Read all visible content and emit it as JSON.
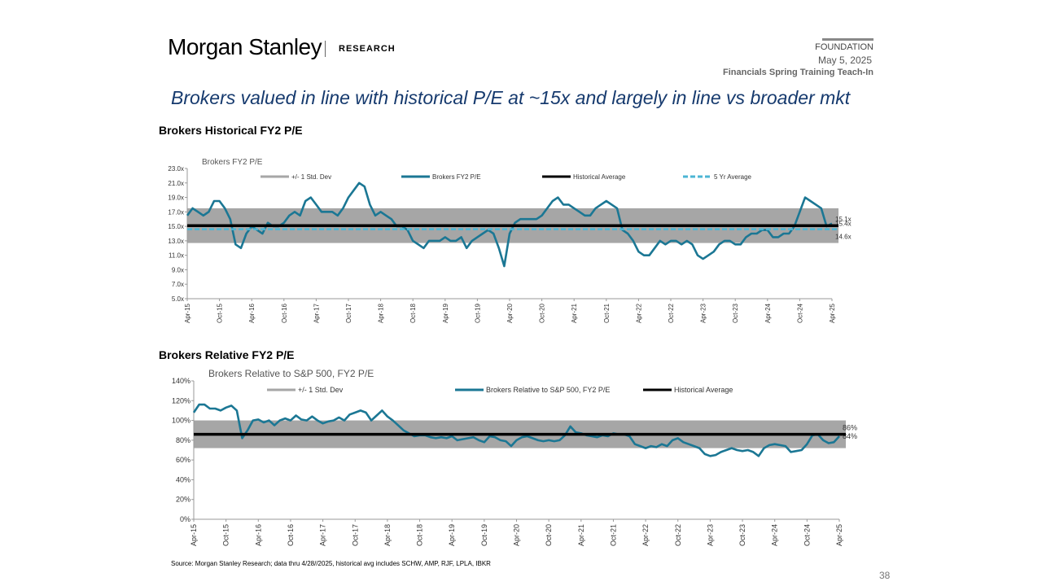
{
  "header": {
    "logo": "Morgan Stanley",
    "section": "RESEARCH",
    "tag": "FOUNDATION",
    "date": "May 5, 2025",
    "event": "Financials Spring Training Teach-In"
  },
  "title": "Brokers valued in line with historical P/E at ~15x and largely in line vs broader mkt",
  "sections": [
    {
      "heading": "Brokers Historical FY2 P/E"
    },
    {
      "heading": "Brokers Relative FY2 P/E"
    }
  ],
  "chart_data": [
    {
      "type": "line",
      "title": "Brokers FY2 P/E",
      "categories": [
        "Apr-15",
        null,
        null,
        null,
        null,
        null,
        "Oct-15",
        null,
        null,
        null,
        null,
        null,
        "Apr-16",
        null,
        null,
        null,
        null,
        null,
        "Oct-16",
        null,
        null,
        null,
        null,
        null,
        "Apr-17",
        null,
        null,
        null,
        null,
        null,
        "Oct-17",
        null,
        null,
        null,
        null,
        null,
        "Apr-18",
        null,
        null,
        null,
        null,
        null,
        "Oct-18",
        null,
        null,
        null,
        null,
        null,
        "Apr-19",
        null,
        null,
        null,
        null,
        null,
        "Oct-19",
        null,
        null,
        null,
        null,
        null,
        "Apr-20",
        null,
        null,
        null,
        null,
        null,
        "Oct-20",
        null,
        null,
        null,
        null,
        null,
        "Apr-21",
        null,
        null,
        null,
        null,
        null,
        "Oct-21",
        null,
        null,
        null,
        null,
        null,
        "Apr-22",
        null,
        null,
        null,
        null,
        null,
        "Oct-22",
        null,
        null,
        null,
        null,
        null,
        "Apr-23",
        null,
        null,
        null,
        null,
        null,
        "Oct-23",
        null,
        null,
        null,
        null,
        null,
        "Apr-24",
        null,
        null,
        null,
        null,
        null,
        "Oct-24",
        null,
        null,
        null,
        null,
        null,
        "Apr-25"
      ],
      "series": [
        {
          "name": "Brokers FY2 P/E",
          "color": "#1b7794",
          "values": [
            16.5,
            17.5,
            17,
            16.5,
            17,
            18.5,
            18.5,
            17.5,
            16,
            12.5,
            12,
            14,
            15,
            14.5,
            14,
            15.5,
            15,
            15,
            15.5,
            16.5,
            17,
            16.5,
            18.5,
            19,
            18,
            17,
            17,
            17,
            16.5,
            17.5,
            19,
            20,
            21,
            20.5,
            18,
            16.5,
            17,
            16.5,
            16,
            15,
            15,
            14.5,
            13,
            12.5,
            12,
            13,
            13,
            13,
            13.5,
            13,
            13,
            13.5,
            12,
            13,
            13.5,
            14,
            14.5,
            14,
            12,
            9.5,
            14,
            15.5,
            16,
            16,
            16,
            16,
            16.5,
            17.5,
            18.5,
            19,
            18,
            18,
            17.5,
            17,
            16.5,
            16.5,
            17.5,
            18,
            18.5,
            18,
            17.5,
            14.5,
            14,
            13,
            11.5,
            11,
            11,
            12,
            13,
            12.5,
            13,
            13,
            12.5,
            13,
            12.5,
            11,
            10.5,
            11,
            11.5,
            12.5,
            13,
            13,
            12.5,
            12.5,
            13.5,
            14,
            14,
            14.5,
            14.5,
            13.5,
            13.5,
            14,
            14,
            15,
            17,
            19,
            18.5,
            18,
            17.5,
            15,
            15.4
          ],
          "last_label": "15.4x"
        }
      ],
      "band": {
        "name": "+/- 1 Std. Dev",
        "color": "#a6a6a6",
        "range": [
          12.7,
          17.5
        ]
      },
      "reference_lines": [
        {
          "name": "Historical Average",
          "color": "#000000",
          "value": 15.1,
          "value_label": "15.1x",
          "dashed": false
        },
        {
          "name": "5 Yr Average",
          "color": "#4cb6d4",
          "value": 14.6,
          "value_label": "14.6x",
          "dashed": true
        }
      ],
      "ylim": [
        5,
        23
      ],
      "yticks": [
        {
          "value": 5,
          "label": "5.0x"
        },
        {
          "value": 7,
          "label": "7.0x"
        },
        {
          "value": 9,
          "label": "9.0x"
        },
        {
          "value": 11,
          "label": "11.0x"
        },
        {
          "value": 13,
          "label": "13.0x"
        },
        {
          "value": 15,
          "label": "15.0x"
        },
        {
          "value": 17,
          "label": "17.0x"
        },
        {
          "value": 19,
          "label": "19.0x"
        },
        {
          "value": 21,
          "label": "21.0x"
        },
        {
          "value": 23,
          "label": "23.0x"
        }
      ]
    },
    {
      "type": "line",
      "title": "Brokers Relative to S&P 500, FY2 P/E",
      "categories": [
        "Apr-15",
        null,
        null,
        null,
        null,
        null,
        "Oct-15",
        null,
        null,
        null,
        null,
        null,
        "Apr-16",
        null,
        null,
        null,
        null,
        null,
        "Oct-16",
        null,
        null,
        null,
        null,
        null,
        "Apr-17",
        null,
        null,
        null,
        null,
        null,
        "Oct-17",
        null,
        null,
        null,
        null,
        null,
        "Apr-18",
        null,
        null,
        null,
        null,
        null,
        "Oct-18",
        null,
        null,
        null,
        null,
        null,
        "Apr-19",
        null,
        null,
        null,
        null,
        null,
        "Oct-19",
        null,
        null,
        null,
        null,
        null,
        "Apr-20",
        null,
        null,
        null,
        null,
        null,
        "Oct-20",
        null,
        null,
        null,
        null,
        null,
        "Apr-21",
        null,
        null,
        null,
        null,
        null,
        "Oct-21",
        null,
        null,
        null,
        null,
        null,
        "Apr-22",
        null,
        null,
        null,
        null,
        null,
        "Oct-22",
        null,
        null,
        null,
        null,
        null,
        "Apr-23",
        null,
        null,
        null,
        null,
        null,
        "Oct-23",
        null,
        null,
        null,
        null,
        null,
        "Apr-24",
        null,
        null,
        null,
        null,
        null,
        "Oct-24",
        null,
        null,
        null,
        null,
        null,
        "Apr-25"
      ],
      "series": [
        {
          "name": "Brokers Relative to S&P 500, FY2 P/E",
          "color": "#1b7794",
          "values": [
            108,
            116,
            116,
            112,
            112,
            110,
            113,
            115,
            110,
            82,
            90,
            100,
            101,
            98,
            100,
            95,
            100,
            102,
            100,
            105,
            101,
            100,
            104,
            100,
            97,
            99,
            100,
            103,
            100,
            106,
            108,
            110,
            108,
            100,
            105,
            110,
            104,
            100,
            95,
            90,
            87,
            84,
            85,
            85,
            83,
            82,
            83,
            82,
            84,
            80,
            81,
            82,
            83,
            80,
            78,
            84,
            83,
            80,
            79,
            74,
            80,
            83,
            84,
            82,
            80,
            79,
            80,
            79,
            80,
            85,
            94,
            88,
            87,
            85,
            84,
            83,
            85,
            84,
            87,
            86,
            86,
            84,
            76,
            74,
            72,
            74,
            73,
            76,
            74,
            80,
            82,
            78,
            76,
            74,
            72,
            66,
            64,
            65,
            68,
            70,
            72,
            70,
            69,
            70,
            68,
            64,
            72,
            75,
            76,
            75,
            74,
            68,
            69,
            70,
            76,
            85,
            86,
            80,
            77,
            78,
            84
          ],
          "last_label": "84%"
        }
      ],
      "band": {
        "name": "+/- 1 Std. Dev",
        "color": "#a6a6a6",
        "range": [
          72,
          100
        ]
      },
      "reference_lines": [
        {
          "name": "Historical Average",
          "color": "#000000",
          "value": 86,
          "value_label": "86%",
          "dashed": false
        }
      ],
      "ylim": [
        0,
        140
      ],
      "yticks": [
        {
          "value": 0,
          "label": "0%"
        },
        {
          "value": 20,
          "label": "20%"
        },
        {
          "value": 40,
          "label": "40%"
        },
        {
          "value": 60,
          "label": "60%"
        },
        {
          "value": 80,
          "label": "80%"
        },
        {
          "value": 100,
          "label": "100%"
        },
        {
          "value": 120,
          "label": "120%"
        },
        {
          "value": 140,
          "label": "140%"
        }
      ]
    }
  ],
  "footer": {
    "source": "Source: Morgan Stanley Research; data thru 4/28//2025, historical avg includes SCHW, AMP, RJF, LPLA, IBKR",
    "page": "38"
  }
}
